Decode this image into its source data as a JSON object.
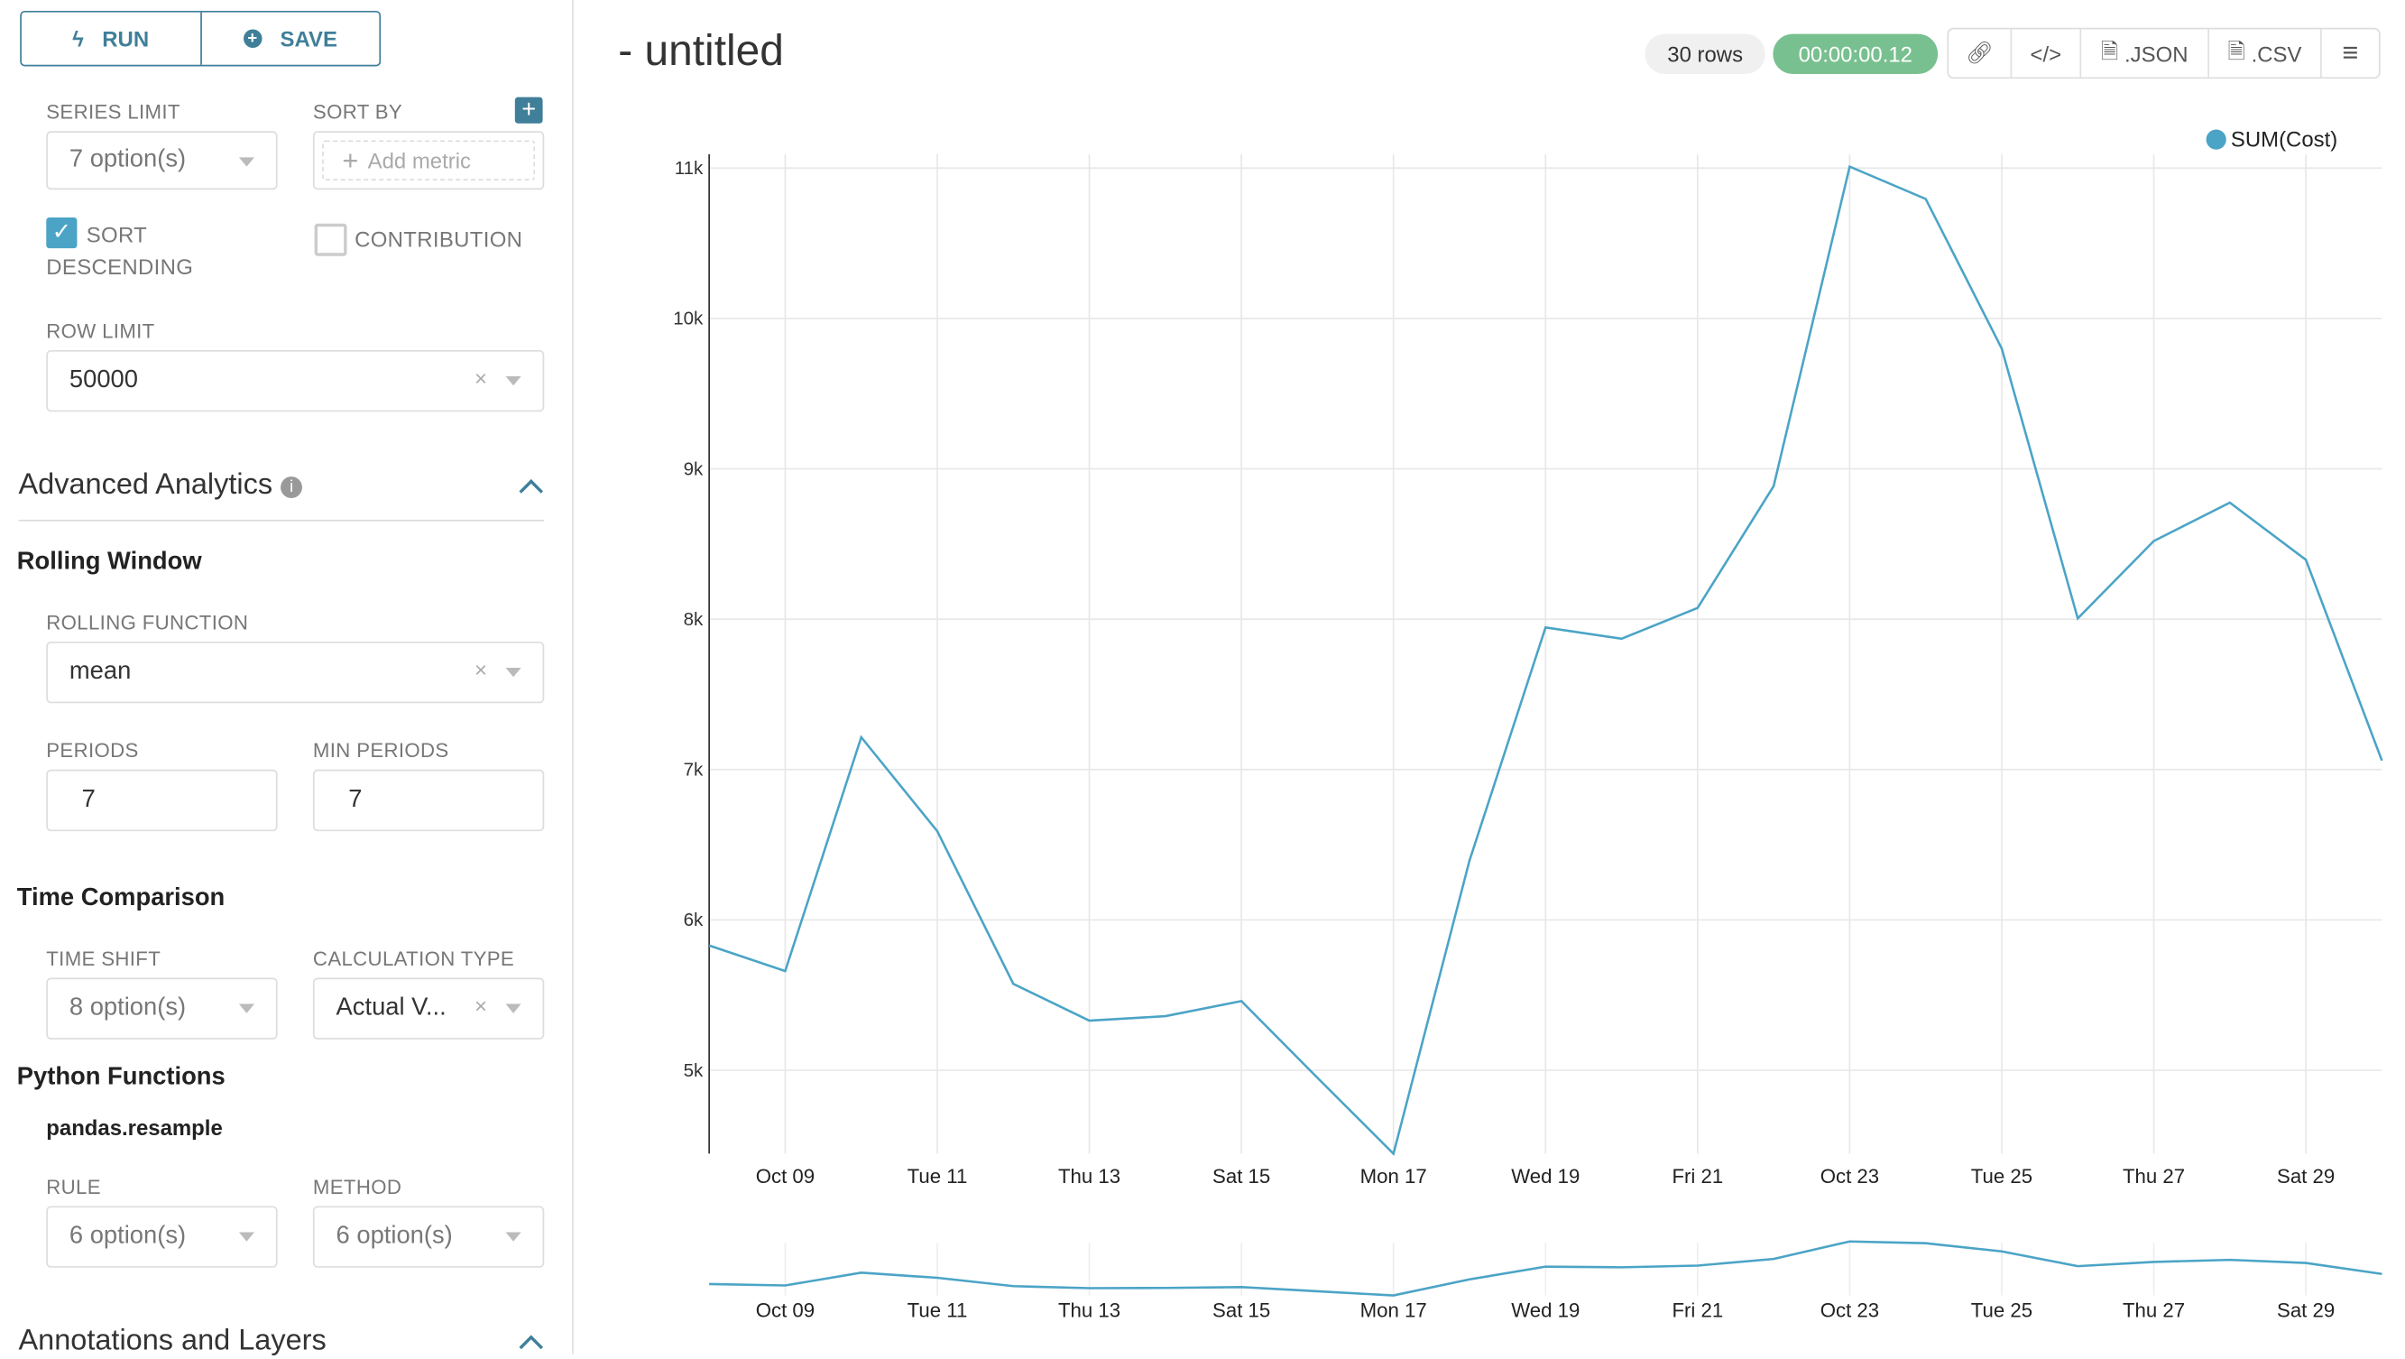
{
  "toolbar": {
    "run_label": "RUN",
    "save_label": "SAVE"
  },
  "controls": {
    "series_limit": {
      "label": "SERIES LIMIT",
      "value": "7 option(s)"
    },
    "sort_by": {
      "label": "SORT BY",
      "placeholder": "Add metric"
    },
    "sort_descending": {
      "label_line1": "SORT",
      "label_line2": "DESCENDING",
      "checked": true
    },
    "contribution": {
      "label": "CONTRIBUTION",
      "checked": false
    },
    "row_limit": {
      "label": "ROW LIMIT",
      "value": "50000"
    }
  },
  "advanced": {
    "title": "Advanced Analytics",
    "rolling_window": {
      "title": "Rolling Window",
      "function_label": "ROLLING FUNCTION",
      "function_value": "mean",
      "periods_label": "PERIODS",
      "periods_value": "7",
      "min_periods_label": "MIN PERIODS",
      "min_periods_value": "7"
    },
    "time_comparison": {
      "title": "Time Comparison",
      "time_shift_label": "TIME SHIFT",
      "time_shift_value": "8 option(s)",
      "calc_type_label": "CALCULATION TYPE",
      "calc_type_value": "Actual V..."
    },
    "python": {
      "title": "Python Functions",
      "subtitle": "pandas.resample",
      "rule_label": "RULE",
      "rule_value": "6 option(s)",
      "method_label": "METHOD",
      "method_value": "6 option(s)"
    }
  },
  "annotations": {
    "title": "Annotations and Layers"
  },
  "header": {
    "title": "- untitled",
    "rows": "30 rows",
    "timer": "00:00:00.12",
    "json_label": ".JSON",
    "csv_label": ".CSV"
  },
  "colors": {
    "accent": "#3f7f99",
    "line": "#4ba4c6",
    "timer": "#78c08f"
  },
  "chart_data": {
    "type": "line",
    "legend": {
      "position": "top-right",
      "entries": [
        "SUM(Cost)"
      ]
    },
    "series": [
      {
        "name": "SUM(Cost)",
        "x": [
          "Oct 08",
          "Oct 09",
          "Oct 10",
          "Oct 11",
          "Oct 12",
          "Oct 13",
          "Oct 14",
          "Oct 15",
          "Oct 16",
          "Oct 17",
          "Oct 18",
          "Oct 19",
          "Oct 20",
          "Oct 21",
          "Oct 22",
          "Oct 23",
          "Oct 24",
          "Oct 25",
          "Oct 26",
          "Oct 27",
          "Oct 28",
          "Oct 29",
          "Oct 30"
        ],
        "values": [
          5830,
          5660,
          7215,
          6590,
          5575,
          5330,
          5360,
          5460,
          4950,
          4445,
          6395,
          7945,
          7870,
          8075,
          8885,
          11010,
          10795,
          9800,
          8005,
          8520,
          8775,
          8395,
          7060
        ]
      }
    ],
    "y_ticks": [
      "5k",
      "6k",
      "7k",
      "8k",
      "9k",
      "10k",
      "11k"
    ],
    "y_tick_values": [
      5000,
      6000,
      7000,
      8000,
      9000,
      10000,
      11000
    ],
    "x_ticks": [
      "Oct 09",
      "Tue 11",
      "Thu 13",
      "Sat 15",
      "Mon 17",
      "Wed 19",
      "Fri 21",
      "Oct 23",
      "Tue 25",
      "Thu 27",
      "Sat 29"
    ],
    "x_tick_index": [
      1,
      3,
      5,
      7,
      9,
      11,
      13,
      15,
      17,
      19,
      21
    ],
    "grid": true,
    "brush": true
  }
}
